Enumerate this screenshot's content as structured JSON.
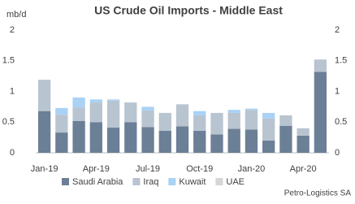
{
  "chart_data": {
    "type": "stacked_bar",
    "title": "US Crude Oil Imports - Middle East",
    "y_label": "mb/d",
    "source": "Petro-Logistics SA",
    "categories": [
      "Jan-19",
      null,
      null,
      "Apr-19",
      null,
      null,
      "Jul-19",
      null,
      null,
      "Oct-19",
      null,
      null,
      "Jan-20",
      null,
      null,
      "Apr-20",
      null
    ],
    "series": [
      {
        "name": "Saudi Arabia",
        "color": "#6b7f96",
        "values": [
          0.68,
          0.33,
          0.52,
          0.5,
          0.41,
          0.5,
          0.42,
          0.36,
          0.43,
          0.36,
          0.3,
          0.39,
          0.38,
          0.2,
          0.44,
          0.28,
          1.32
        ]
      },
      {
        "name": "Iraq",
        "color": "#b8c4d0",
        "values": [
          0.51,
          0.29,
          0.22,
          0.32,
          0.44,
          0.32,
          0.27,
          0.29,
          0.36,
          0.25,
          0.35,
          0.26,
          0.32,
          0.36,
          0.17,
          0.12,
          0.2
        ]
      },
      {
        "name": "Kuwait",
        "color": "#a9d2f5",
        "values": [
          0,
          0.11,
          0.16,
          0.05,
          0.02,
          0,
          0.06,
          0,
          0,
          0.07,
          0,
          0.05,
          0.02,
          0.09,
          0,
          0,
          0
        ]
      },
      {
        "name": "UAE",
        "color": "#d6d6d6",
        "values": [
          0,
          0,
          0,
          0,
          0,
          0,
          0,
          0,
          0,
          0,
          0,
          0,
          0,
          0,
          0,
          0,
          0
        ]
      }
    ],
    "ylim": [
      0,
      2
    ],
    "yticks": [
      0,
      0.5,
      1,
      1.5,
      2
    ],
    "y2lim": [
      0,
      2
    ],
    "y2ticks": [
      0,
      0.5,
      1,
      1.5,
      2
    ],
    "grid": false
  }
}
